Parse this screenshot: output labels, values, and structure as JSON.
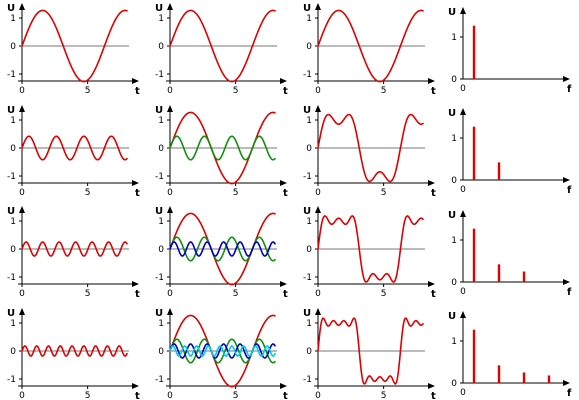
{
  "colors": {
    "h1": "#e00000",
    "h3": "#109010",
    "h5": "#0000c0",
    "h7": "#00c8e8",
    "axis": "#000000",
    "baseline": "#777777"
  },
  "chart_data": {
    "type": "line",
    "harmonics": [
      {
        "n": 1,
        "amplitude": 1.27,
        "color_key": "h1"
      },
      {
        "n": 3,
        "amplitude": 0.42,
        "color_key": "h3"
      },
      {
        "n": 5,
        "amplitude": 0.25,
        "color_key": "h5"
      },
      {
        "n": 7,
        "amplitude": 0.18,
        "color_key": "h7"
      }
    ],
    "time_axis": {
      "label": "t",
      "range": [
        0,
        8
      ],
      "ticks": [
        "0",
        "5"
      ],
      "tick_values": [
        0,
        5
      ]
    },
    "u_axis": {
      "label": "U",
      "range": [
        -1.5,
        1.5
      ],
      "ticks": [
        "-1",
        "0",
        "1"
      ],
      "tick_values": [
        -1,
        0,
        1
      ]
    },
    "spectrum_axis": {
      "xlabel": "f",
      "ylabel": "U",
      "range": [
        0,
        1.5
      ],
      "ticks": [
        "0",
        "1"
      ],
      "tick_values": [
        0,
        1
      ]
    },
    "rows": [
      {
        "harmonic": 1,
        "components": [
          1
        ],
        "sum_of": [
          1
        ],
        "spectrum": [
          1
        ]
      },
      {
        "harmonic": 3,
        "components": [
          1,
          3
        ],
        "sum_of": [
          1,
          3
        ],
        "spectrum": [
          1,
          3
        ]
      },
      {
        "harmonic": 5,
        "components": [
          1,
          3,
          5
        ],
        "sum_of": [
          1,
          3,
          5
        ],
        "spectrum": [
          1,
          3,
          5
        ]
      },
      {
        "harmonic": 7,
        "components": [
          1,
          3,
          5,
          7
        ],
        "sum_of": [
          1,
          3,
          5,
          7
        ],
        "spectrum": [
          1,
          3,
          5,
          7
        ]
      }
    ]
  }
}
